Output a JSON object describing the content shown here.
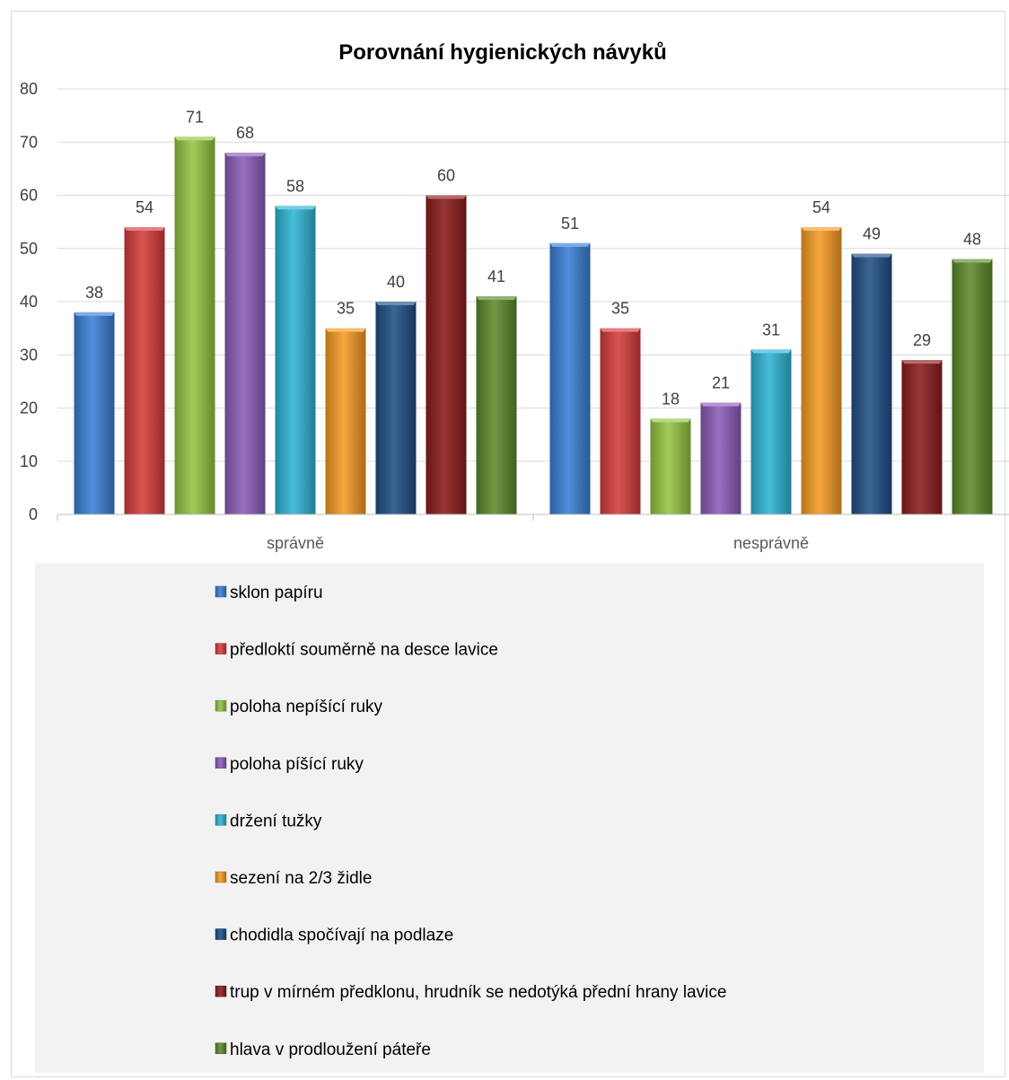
{
  "chart_data": {
    "type": "bar",
    "title": "Porovnání hygienických návyků",
    "categories": [
      "správně",
      "nesprávně"
    ],
    "ylim": [
      0,
      80
    ],
    "yticks": [
      0,
      10,
      20,
      30,
      40,
      50,
      60,
      70,
      80
    ],
    "grid": true,
    "legend_position": "bottom",
    "series": [
      {
        "name": "sklon papíru",
        "values": [
          38,
          51
        ],
        "color": "#3a7fd5"
      },
      {
        "name": "předloktí souměrně na desce lavice",
        "values": [
          54,
          35
        ],
        "color": "#d63c3c"
      },
      {
        "name": "poloha nepíšící ruky",
        "values": [
          71,
          18
        ],
        "color": "#94c441"
      },
      {
        "name": "poloha píšící ruky",
        "values": [
          68,
          21
        ],
        "color": "#8a5cb8"
      },
      {
        "name": "držení tužky",
        "values": [
          58,
          31
        ],
        "color": "#2eb4d4"
      },
      {
        "name": "sezení na 2/3 židle",
        "values": [
          35,
          54
        ],
        "color": "#f59a23"
      },
      {
        "name": "chodidla spočívají na podlaze",
        "values": [
          40,
          49
        ],
        "color": "#1f4f86"
      },
      {
        "name": "trup v mírném předklonu, hrudník se nedotýká přední hrany lavice",
        "values": [
          60,
          29
        ],
        "color": "#8b1c1c"
      },
      {
        "name": "hlava v prodloužení páteře",
        "values": [
          41,
          48
        ],
        "color": "#5c8a2a"
      }
    ]
  }
}
